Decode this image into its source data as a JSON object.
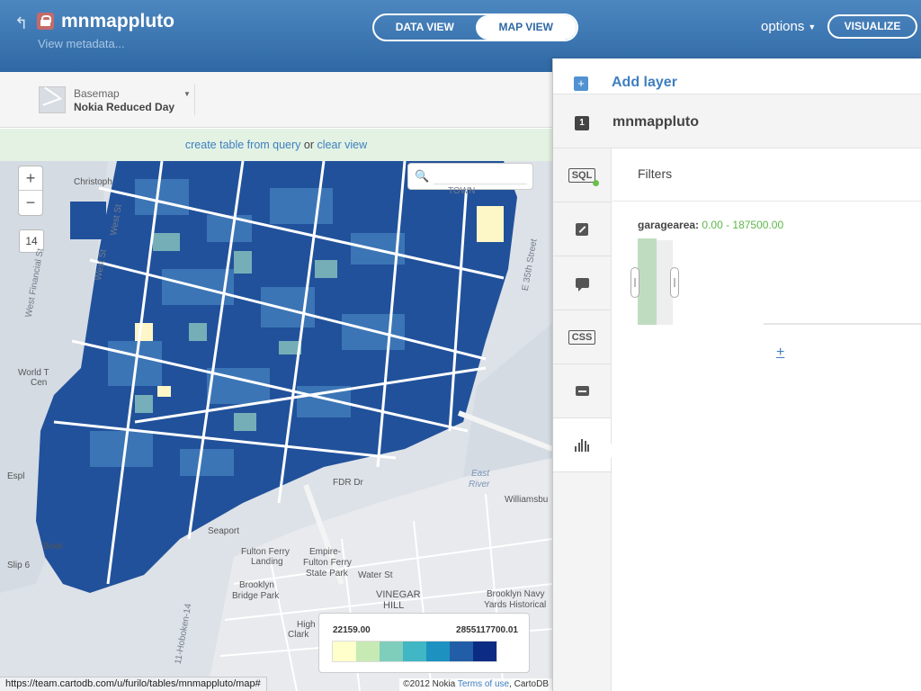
{
  "header": {
    "table_name": "mnmappluto",
    "metadata_link": "View metadata...",
    "tabs": [
      {
        "label": "DATA VIEW",
        "active": false
      },
      {
        "label": "MAP VIEW",
        "active": true
      }
    ],
    "options_label": "options",
    "visualize_label": "VISUALIZE",
    "icons": [
      "back-arrow-icon",
      "lock-icon"
    ]
  },
  "basemap": {
    "label": "Basemap",
    "name": "Nokia Reduced Day"
  },
  "query_bar": {
    "link_create": "create table from query",
    "or_text": "or",
    "link_clear": "clear view"
  },
  "map": {
    "zoom_in": "+",
    "zoom_out": "−",
    "zoom_level": "14",
    "search_placeholder": "",
    "labels": {
      "christopher": "Christoph",
      "west_st": "West St",
      "west_st_2": "West St",
      "town": "TOWN",
      "world_trade": "World T",
      "world_trade_2": "Cen",
      "esplanade": "Espl",
      "east_river": "East",
      "east_river_2": "River",
      "williamsburg": "Williamsbu",
      "fdr": "FDR Dr",
      "fulton_ferry": "Fulton Ferry",
      "fulton_ferry_2": "Landing",
      "empire": "Empire-",
      "empire_2": "Fulton Ferry",
      "empire_3": "State Park",
      "water_st": "Water St",
      "brooklyn_bridge": "Brooklyn",
      "brooklyn_bridge_2": "Bridge Park",
      "vinegar_hill": "VINEGAR",
      "vinegar_hill_2": "HILL",
      "brooklyn_navy": "Brooklyn Navy",
      "brooklyn_navy_2": "Yards Historical",
      "seaport": "Seaport",
      "slip": "Slip 6",
      "bowl": "Bowl",
      "high": "High",
      "clark": "Clark",
      "e35th": "E 35th Street",
      "west_financial": "West Financial St",
      "hoboken": "11-Hoboken-14"
    },
    "legend": {
      "min": "22159.00",
      "max": "2855117700.01",
      "colors": [
        "#ffffcc",
        "#c7e9b4",
        "#7fcdbb",
        "#41b6c4",
        "#1d91c0",
        "#225ea8",
        "#0c2c84"
      ]
    },
    "status_url": "https://team.cartodb.com/u/furilo/tables/mnmappluto/map#",
    "copyright_prefix": "©2012 Nokia",
    "copyright_terms": "Terms of use",
    "copyright_suffix": ", CartoDB"
  },
  "panel": {
    "add_layer": "Add layer",
    "layer_number": "1",
    "layer_name": "mnmappluto",
    "tools": [
      {
        "name": "sql-tool",
        "label": "SQL"
      },
      {
        "name": "wizard-tool",
        "label": ""
      },
      {
        "name": "infowindow-tool",
        "label": ""
      },
      {
        "name": "css-tool",
        "label": "CSS"
      },
      {
        "name": "legend-tool",
        "label": ""
      },
      {
        "name": "filters-tool",
        "label": ""
      }
    ],
    "filters": {
      "title": "Filters",
      "column": "garagearea:",
      "range": "0.00 - 187500.00",
      "add_label": "+"
    }
  }
}
